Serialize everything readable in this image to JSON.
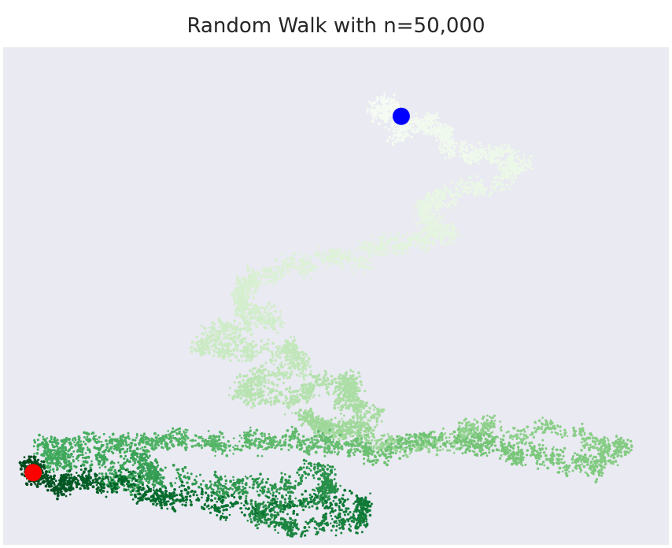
{
  "chart_data": {
    "type": "scatter",
    "title": "Random Walk with n=50,000",
    "n_points": 50000,
    "axes_visible": false,
    "grid": false,
    "colormap": "Greens",
    "colormap_start": "#f7fcf5",
    "colormap_end": "#00441b",
    "background": "#eaeaf2",
    "start_marker": {
      "label": "start",
      "color": "#0000ff",
      "x": 2.5,
      "y": 53.5
    },
    "end_marker": {
      "label": "end",
      "color": "#ff0000",
      "x": -138.5,
      "y": -57.5
    },
    "xlim": [
      -150,
      105
    ],
    "ylim": [
      -80,
      75
    ],
    "path_anchors": [
      [
        2.5,
        53.5
      ],
      [
        -8,
        57
      ],
      [
        2,
        50
      ],
      [
        14,
        52
      ],
      [
        20,
        43
      ],
      [
        34,
        42
      ],
      [
        49,
        40
      ],
      [
        40,
        33
      ],
      [
        20,
        28
      ],
      [
        10,
        24
      ],
      [
        22,
        18
      ],
      [
        8,
        14
      ],
      [
        -10,
        12
      ],
      [
        -30,
        8
      ],
      [
        -50,
        5
      ],
      [
        -58,
        0
      ],
      [
        -60,
        -6
      ],
      [
        -45,
        -10
      ],
      [
        -65,
        -13
      ],
      [
        -75,
        -18
      ],
      [
        -60,
        -20
      ],
      [
        -40,
        -19
      ],
      [
        -35,
        -24
      ],
      [
        -50,
        -28
      ],
      [
        -60,
        -32
      ],
      [
        -43,
        -34
      ],
      [
        -27,
        -30
      ],
      [
        -13,
        -29
      ],
      [
        -20,
        -35
      ],
      [
        -7,
        -40
      ],
      [
        -25,
        -44
      ],
      [
        -35,
        -40
      ],
      [
        -14,
        -46
      ],
      [
        5,
        -50
      ],
      [
        25,
        -47
      ],
      [
        35,
        -43
      ],
      [
        70,
        -45
      ],
      [
        90,
        -50
      ],
      [
        75,
        -55
      ],
      [
        55,
        -52
      ],
      [
        40,
        -49
      ],
      [
        22,
        -48
      ],
      [
        -7,
        -50
      ],
      [
        -25,
        -48
      ],
      [
        -40,
        -47
      ],
      [
        -60,
        -49
      ],
      [
        -80,
        -47
      ],
      [
        -95,
        -49
      ],
      [
        -115,
        -48
      ],
      [
        -135,
        -50
      ],
      [
        -125,
        -55
      ],
      [
        -100,
        -52
      ],
      [
        -90,
        -57
      ],
      [
        -110,
        -60
      ],
      [
        -70,
        -60
      ],
      [
        -50,
        -62
      ],
      [
        -25,
        -58
      ],
      [
        -28,
        -66
      ],
      [
        -55,
        -70
      ],
      [
        -40,
        -75
      ],
      [
        -15,
        -72
      ],
      [
        -10,
        -66
      ],
      [
        -60,
        -67
      ],
      [
        -85,
        -66
      ],
      [
        -100,
        -62
      ],
      [
        -120,
        -58
      ],
      [
        -130,
        -62
      ],
      [
        -140,
        -55
      ],
      [
        -138.5,
        -57.5
      ]
    ]
  }
}
